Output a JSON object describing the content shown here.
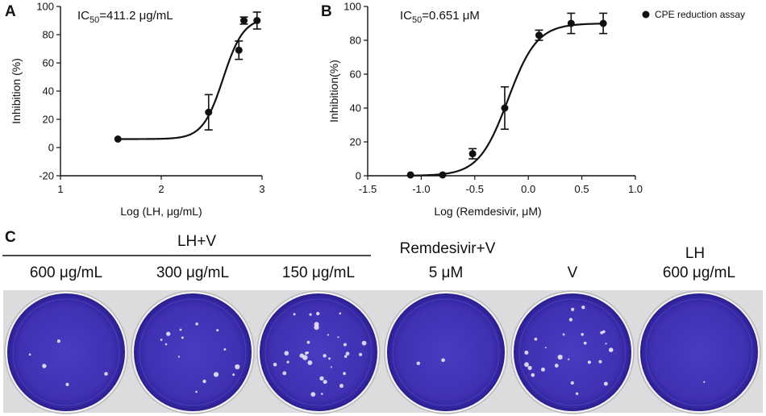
{
  "panel_letters": {
    "a": "A",
    "b": "B",
    "c": "C"
  },
  "chart_data": [
    {
      "type": "scatter",
      "title": "",
      "ic50_prefix": "IC",
      "ic50_sub": "50",
      "ic50_suffix": "=411.2 μg/mL",
      "xlabel": "Log (LH, μg/mL)",
      "ylabel": "Inhibition (%)",
      "xlim": [
        1,
        3
      ],
      "ylim": [
        -20,
        100
      ],
      "xticks": [
        1,
        2,
        3
      ],
      "yticks": [
        -20,
        0,
        20,
        40,
        60,
        80,
        100
      ],
      "x": [
        1.57,
        2.47,
        2.77,
        2.82,
        2.95
      ],
      "y": [
        6,
        25,
        69,
        90,
        90
      ],
      "err": [
        0,
        12.5,
        6.5,
        2.5,
        6
      ],
      "fit": {
        "bottom": 6,
        "top": 92,
        "logEC50": 2.614,
        "hill": 4.3
      },
      "grid": false
    },
    {
      "type": "scatter",
      "title": "",
      "ic50_prefix": "IC",
      "ic50_sub": "50",
      "ic50_suffix": "=0.651 μM",
      "xlabel": "Log (Remdesivir, μM)",
      "ylabel": "Inhibition(%)",
      "xlim": [
        -1.5,
        1.0
      ],
      "ylim": [
        0,
        100
      ],
      "xticks": [
        -1.5,
        -1.0,
        -0.5,
        0.0,
        0.5,
        1.0
      ],
      "xtick_labels": [
        "-1.5",
        "-1.0",
        "-0.5",
        "0.0",
        "0.5",
        "1.0"
      ],
      "yticks": [
        0,
        20,
        40,
        60,
        80,
        100
      ],
      "x": [
        -1.1,
        -0.8,
        -0.52,
        -0.22,
        0.1,
        0.4,
        0.7
      ],
      "y": [
        0.5,
        0.5,
        13,
        40,
        83,
        90,
        90
      ],
      "err": [
        0,
        0,
        3,
        12.5,
        3,
        6,
        6
      ],
      "fit": {
        "bottom": 0,
        "top": 90,
        "logEC50": -0.19,
        "hill": 3.2
      },
      "legend": {
        "label": "CPE reduction assay",
        "placement": "top-right"
      },
      "grid": false
    }
  ],
  "plates": {
    "group_lh_v": "LH+V",
    "group_remdesivir_v": "Remdesivir+V",
    "group_lh": "LH",
    "wells": [
      {
        "label": "600 μg/mL"
      },
      {
        "label": "300 μg/mL"
      },
      {
        "label": "150 μg/mL"
      },
      {
        "label": "5 μM"
      },
      {
        "label": "V"
      },
      {
        "label": "600 μg/mL"
      }
    ],
    "colors": {
      "stain": "#4536b8",
      "stain_dark": "#2c1f8e",
      "plate_bg": "#d9d9db",
      "plaque": "#e8e4f5"
    }
  }
}
